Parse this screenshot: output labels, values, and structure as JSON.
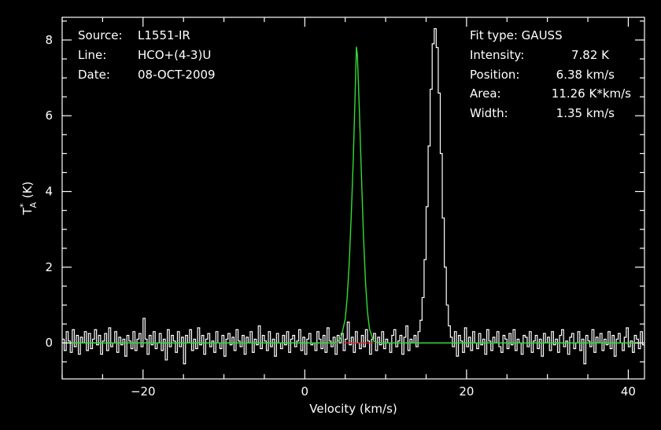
{
  "info_left": [
    {
      "key": "Source:",
      "value": "L1551-IR"
    },
    {
      "key": "Line:",
      "value": "HCO+(4-3)U"
    },
    {
      "key": "Date:",
      "value": "08-OCT-2009"
    }
  ],
  "info_right": {
    "fit_type": "Fit type: GAUSS",
    "rows": [
      {
        "key": "Intensity:",
        "value": "7.82 K"
      },
      {
        "key": "Position:",
        "value": "6.38 km/s"
      },
      {
        "key": "Area:",
        "value": "11.26 K*km/s"
      },
      {
        "key": "Width:",
        "value": "1.35 km/s"
      }
    ]
  },
  "chart_data": {
    "type": "line",
    "xlabel": "Velocity (km/s)",
    "ylabel_main": "T",
    "ylabel_sup": "*",
    "ylabel_sub": "A",
    "ylabel_unit": " (K)",
    "xlim": [
      -30,
      42
    ],
    "ylim": [
      -0.95,
      8.6
    ],
    "xticks": [
      -20,
      0,
      20,
      40
    ],
    "yticks": [
      0,
      2,
      4,
      6,
      8
    ],
    "colors": {
      "spectrum": "#ffffff",
      "fit": "#33dd33",
      "baseline": "#dd2222",
      "frame": "#ffffff"
    },
    "series": [
      {
        "role": "spectrum",
        "x_start": -30,
        "x_step": 0.25,
        "values": [
          0.1,
          -0.2,
          0.3,
          0.05,
          -0.25,
          0.35,
          -0.1,
          0.2,
          -0.3,
          0.15,
          0.0,
          0.3,
          -0.2,
          0.25,
          -0.15,
          0.1,
          0.35,
          -0.05,
          0.2,
          -0.3,
          0.05,
          0.25,
          -0.2,
          0.4,
          -0.1,
          0.0,
          0.3,
          -0.25,
          0.15,
          -0.05,
          0.1,
          -0.35,
          0.2,
          0.05,
          -0.15,
          0.3,
          -0.2,
          0.1,
          0.25,
          -0.1,
          0.65,
          0.1,
          -0.3,
          0.2,
          -0.05,
          0.3,
          -0.15,
          0.0,
          0.25,
          -0.2,
          0.1,
          -0.45,
          0.35,
          -0.1,
          0.2,
          0.05,
          -0.25,
          0.3,
          -0.1,
          0.15,
          -0.55,
          0.2,
          0.0,
          0.35,
          -0.2,
          0.1,
          -0.15,
          0.4,
          -0.05,
          0.2,
          -0.3,
          0.1,
          0.25,
          -0.1,
          0.05,
          -0.25,
          0.3,
          0.0,
          -0.15,
          0.2,
          -0.35,
          0.1,
          0.25,
          -0.05,
          0.15,
          -0.2,
          0.35,
          0.05,
          -0.1,
          0.2,
          -0.3,
          0.15,
          0.0,
          0.3,
          -0.25,
          0.1,
          -0.05,
          0.45,
          -0.15,
          0.2,
          0.05,
          -0.2,
          0.3,
          -0.1,
          0.1,
          -0.35,
          0.25,
          0.0,
          -0.15,
          0.2,
          -0.05,
          0.3,
          -0.25,
          0.1,
          0.2,
          -0.1,
          0.05,
          0.35,
          -0.2,
          0.15,
          -0.3,
          0.1,
          0.25,
          -0.05,
          0.0,
          -0.2,
          0.3,
          0.1,
          -0.15,
          0.2,
          -0.25,
          0.4,
          0.05,
          -0.1,
          0.15,
          -0.3,
          0.2,
          0.0,
          0.25,
          -0.2,
          0.1,
          0.55,
          -0.05,
          0.15,
          -0.25,
          0.3,
          0.0,
          -0.15,
          0.2,
          -0.1,
          0.35,
          0.05,
          -0.3,
          0.1,
          0.25,
          -0.2,
          0.15,
          -0.05,
          0.3,
          -0.15,
          0.1,
          0.0,
          -0.25,
          0.2,
          0.35,
          -0.1,
          0.05,
          0.2,
          -0.3,
          0.15,
          0.45,
          -0.2,
          0.1,
          0.0,
          0.2,
          -0.1,
          0.3,
          0.6,
          1.2,
          2.2,
          3.6,
          5.2,
          6.7,
          7.9,
          8.3,
          7.8,
          6.6,
          5.0,
          3.3,
          2.0,
          1.0,
          0.45,
          0.15,
          -0.1,
          0.3,
          -0.35,
          0.2,
          0.05,
          -0.25,
          0.4,
          -0.1,
          0.15,
          -0.2,
          0.3,
          0.0,
          -0.15,
          0.25,
          -0.05,
          0.1,
          -0.3,
          0.35,
          0.05,
          -0.2,
          0.15,
          0.0,
          0.3,
          -0.1,
          -0.25,
          0.2,
          0.1,
          -0.15,
          0.25,
          -0.05,
          0.35,
          -0.2,
          0.1,
          0.0,
          -0.3,
          0.2,
          0.15,
          -0.1,
          0.3,
          -0.25,
          0.05,
          0.2,
          -0.15,
          0.1,
          -0.35,
          0.25,
          0.0,
          0.15,
          -0.2,
          0.3,
          -0.05,
          0.1,
          -0.25,
          0.2,
          0.35,
          -0.1,
          0.05,
          -0.3,
          0.15,
          0.25,
          -0.15,
          0.0,
          0.3,
          -0.2,
          0.1,
          -0.55,
          0.2,
          0.05,
          -0.1,
          0.35,
          -0.25,
          0.15,
          0.0,
          0.25,
          -0.2,
          0.1,
          -0.05,
          0.3,
          -0.15,
          0.2,
          -0.35,
          0.1,
          0.25,
          0.0,
          -0.2,
          0.15,
          0.4,
          -0.1,
          0.05,
          -0.25,
          0.2,
          0.1,
          -0.15,
          0.3,
          -0.05,
          0.0,
          0.25,
          -0.3,
          0.15,
          0.35,
          -0.1,
          0.2,
          -0.2,
          0.05,
          0.3,
          -0.15,
          0.1,
          0.0,
          -0.25,
          0.2,
          0.1,
          -0.05,
          0.3,
          -0.2,
          0.15,
          -0.1,
          0.25,
          0.05,
          -0.3,
          0.2,
          0.0,
          0.15,
          -0.15,
          0.35,
          -0.05,
          0.1,
          -0.2,
          0.25,
          0.0
        ]
      },
      {
        "role": "fit",
        "x": [
          -30,
          3.5,
          4.0,
          4.5,
          5.0,
          5.25,
          5.5,
          5.75,
          6.0,
          6.25,
          6.38,
          6.5,
          6.75,
          7.0,
          7.25,
          7.5,
          7.75,
          8.0,
          8.5,
          9.0,
          9.5,
          42
        ],
        "y": [
          0,
          0,
          0.03,
          0.15,
          0.63,
          1.22,
          2.14,
          3.4,
          4.87,
          6.77,
          7.82,
          7.6,
          6.13,
          4.44,
          2.86,
          1.63,
          0.82,
          0.37,
          0.05,
          0.01,
          0,
          0
        ]
      },
      {
        "role": "baseline",
        "x": [
          4.9,
          8.5
        ],
        "y": [
          0,
          0
        ]
      }
    ]
  }
}
